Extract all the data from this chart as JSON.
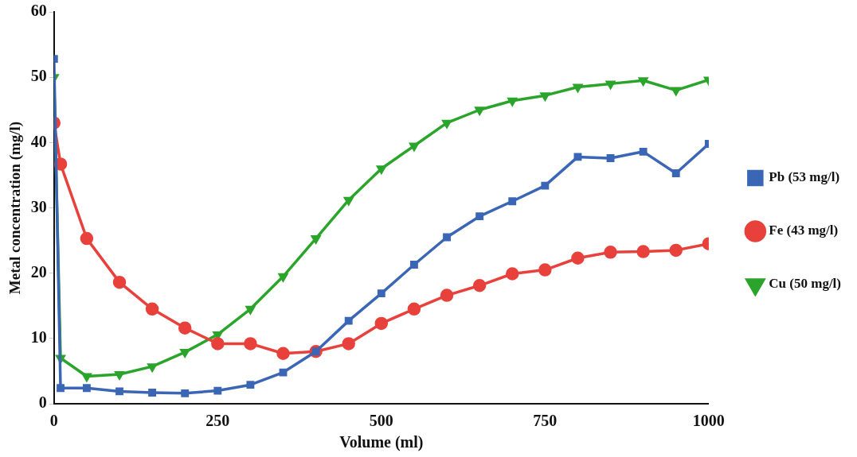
{
  "chart_data": {
    "type": "line",
    "xlabel": "Volume (ml)",
    "ylabel": "Metal concentration (mg/l)",
    "x": [
      0,
      10,
      50,
      100,
      150,
      200,
      250,
      300,
      350,
      400,
      450,
      500,
      550,
      600,
      650,
      700,
      750,
      800,
      850,
      900,
      950,
      1000
    ],
    "xlim": [
      0,
      1000
    ],
    "xticks": [
      0,
      250,
      500,
      750,
      1000
    ],
    "ylim": [
      0,
      60
    ],
    "yticks": [
      0,
      10,
      20,
      30,
      40,
      50,
      60
    ],
    "grid": false,
    "legend": "right",
    "line_style": "solid",
    "series": [
      {
        "name": "Pb (53 mg/l)",
        "color": "#3a66b5",
        "marker": "square",
        "values": [
          52.8,
          2.4,
          2.4,
          1.9,
          1.7,
          1.6,
          2.0,
          2.9,
          4.8,
          8.0,
          12.7,
          16.9,
          21.3,
          25.5,
          28.7,
          31.0,
          33.4,
          37.8,
          37.6,
          38.6,
          35.3,
          39.8
        ]
      },
      {
        "name": "Fe (43 mg/l)",
        "color": "#e8413c",
        "marker": "circle",
        "values": [
          43.0,
          36.7,
          25.3,
          18.6,
          14.5,
          11.6,
          9.2,
          9.2,
          7.7,
          8.0,
          9.2,
          12.3,
          14.5,
          16.6,
          18.1,
          19.9,
          20.5,
          22.3,
          23.2,
          23.3,
          23.5,
          24.5
        ]
      },
      {
        "name": "Cu (50 mg/l)",
        "color": "#2aa42a",
        "marker": "triangle-down",
        "values": [
          50.0,
          7.0,
          4.2,
          4.5,
          5.7,
          7.9,
          10.6,
          14.5,
          19.5,
          25.3,
          31.2,
          36.0,
          39.5,
          43.0,
          45.0,
          46.4,
          47.2,
          48.5,
          49.0,
          49.5,
          48.0,
          49.6
        ]
      }
    ]
  }
}
